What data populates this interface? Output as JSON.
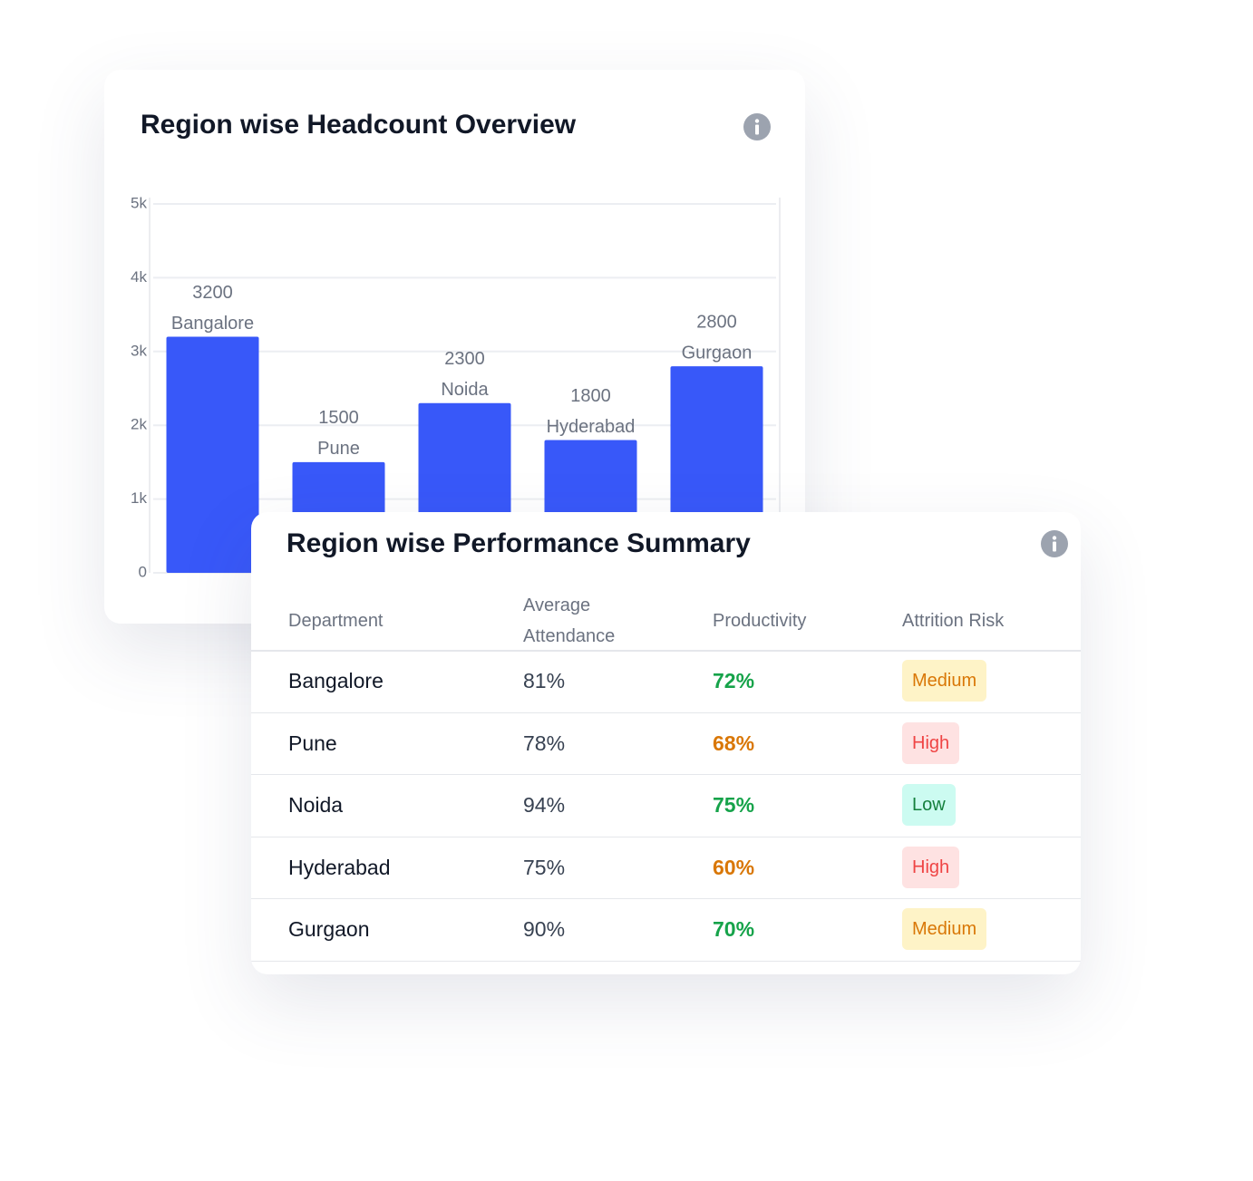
{
  "chart_data": {
    "type": "bar",
    "title": "Region wise Headcount Overview",
    "categories": [
      "Bangalore",
      "Pune",
      "Noida",
      "Hyderabad",
      "Gurgaon"
    ],
    "values": [
      3200,
      1500,
      2300,
      1800,
      2800
    ],
    "color": "#3858f9",
    "ylim": [
      0,
      5000
    ],
    "yticks": [
      0,
      {
        "value": 1000,
        "label": "1k"
      },
      {
        "value": 2000,
        "label": "2k"
      },
      {
        "value": 3000,
        "label": "3k"
      },
      {
        "value": 4000,
        "label": "4k"
      },
      {
        "value": 5000,
        "label": "5k"
      }
    ],
    "grid": true
  },
  "table": {
    "title": "Region wise Performance Summary",
    "columns": [
      "Department",
      "Average Attendance",
      "Productivity",
      "Attrition Risk"
    ],
    "rows": [
      {
        "department": "Bangalore",
        "attendance": "81%",
        "productivity": "72%",
        "productivity_color": "#16a34a",
        "risk": "Medium",
        "risk_color": "#d97706",
        "risk_bg": "#fef3c7"
      },
      {
        "department": "Pune",
        "attendance": "78%",
        "productivity": "68%",
        "productivity_color": "#d97706",
        "risk": "High",
        "risk_color": "#ef4444",
        "risk_bg": "#fee2e2"
      },
      {
        "department": "Noida",
        "attendance": "94%",
        "productivity": "75%",
        "productivity_color": "#16a34a",
        "risk": "Low",
        "risk_color": "#15803d",
        "risk_bg": "#ccfbf1"
      },
      {
        "department": "Hyderabad",
        "attendance": "75%",
        "productivity": "60%",
        "productivity_color": "#d97706",
        "risk": "High",
        "risk_color": "#ef4444",
        "risk_bg": "#fee2e2"
      },
      {
        "department": "Gurgaon",
        "attendance": "90%",
        "productivity": "70%",
        "productivity_color": "#16a34a",
        "risk": "Medium",
        "risk_color": "#d97706",
        "risk_bg": "#fef3c7"
      }
    ]
  }
}
